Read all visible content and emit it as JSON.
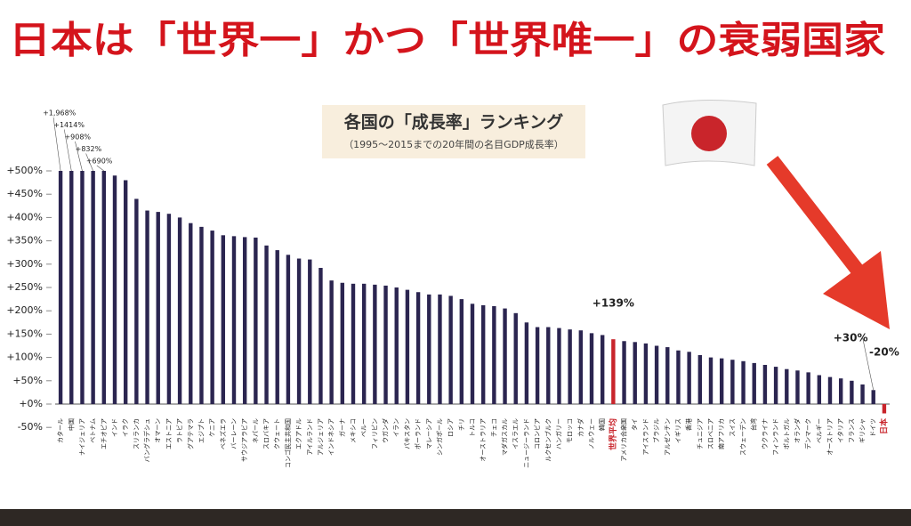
{
  "title": "日本は「世界一」かつ「世界唯一」の衰弱国家",
  "chart_data": {
    "type": "bar",
    "title": "各国の「成長率」ランキング",
    "subtitle": "（1995～2015までの20年間の名目GDP成長率）",
    "categories": [
      "カタール",
      "中国",
      "ナイジェリア",
      "ベトナム",
      "エチオピア",
      "インド",
      "イラク",
      "スリランカ",
      "バングラデシュ",
      "オマーン",
      "エストニア",
      "ラトビア",
      "グアテマラ",
      "エジプト",
      "ケニア",
      "ベネズエラ",
      "バーレーン",
      "サウジアラビア",
      "ネパール",
      "スロバキア",
      "クウェート",
      "コンゴ民主共和国",
      "エクアドル",
      "アイルランド",
      "アルジェリア",
      "インドネシア",
      "ガーナ",
      "メキシコ",
      "ペルー",
      "フィリピン",
      "ウガンダ",
      "イラン",
      "パキスタン",
      "ポーランド",
      "マレーシア",
      "シンガポール",
      "ロシア",
      "チリ",
      "トルコ",
      "オーストラリア",
      "チェコ",
      "マダガスカル",
      "イスラエル",
      "ニュージーランド",
      "コロンビア",
      "ルクセンブルク",
      "ハンガリー",
      "モロッコ",
      "カナダ",
      "ノルウェー",
      "韓国",
      "世界平均",
      "アメリカ合衆国",
      "タイ",
      "アイスランド",
      "ブラジル",
      "アルゼンチン",
      "イギリス",
      "香港",
      "チュニジア",
      "スロベニア",
      "南アフリカ",
      "スイス",
      "スウェーデン",
      "台湾",
      "ウクライナ",
      "フィンランド",
      "ポルトガル",
      "オランダ",
      "デンマーク",
      "ベルギー",
      "オーストリア",
      "イタリア",
      "フランス",
      "ギリシャ",
      "ドイツ",
      "日本"
    ],
    "values": [
      1968,
      1414,
      908,
      832,
      690,
      490,
      480,
      440,
      415,
      412,
      408,
      400,
      388,
      380,
      372,
      362,
      360,
      358,
      357,
      340,
      330,
      320,
      312,
      310,
      292,
      265,
      260,
      258,
      258,
      256,
      254,
      250,
      245,
      240,
      235,
      235,
      232,
      225,
      215,
      212,
      210,
      205,
      195,
      175,
      165,
      165,
      163,
      160,
      158,
      152,
      148,
      139,
      135,
      133,
      130,
      125,
      122,
      115,
      112,
      105,
      100,
      98,
      95,
      92,
      88,
      84,
      80,
      75,
      72,
      68,
      62,
      58,
      55,
      50,
      42,
      30,
      -20
    ],
    "value_labels": [
      "+1,968%",
      "+1414%",
      "+908%",
      "+832%",
      "+690%",
      null,
      null,
      null,
      null,
      null,
      null,
      null,
      null,
      null,
      null,
      null,
      null,
      null,
      null,
      null,
      null,
      null,
      null,
      null,
      null,
      null,
      null,
      null,
      null,
      null,
      null,
      null,
      null,
      null,
      null,
      null,
      null,
      null,
      null,
      null,
      null,
      null,
      null,
      null,
      null,
      null,
      null,
      null,
      null,
      null,
      null,
      "+139%",
      null,
      null,
      null,
      null,
      null,
      null,
      null,
      null,
      null,
      null,
      null,
      null,
      null,
      null,
      null,
      null,
      null,
      null,
      null,
      null,
      null,
      null,
      null,
      "+30%",
      "-20%"
    ],
    "colors": [
      "#2b2550",
      "#2b2550",
      "#2b2550",
      "#2b2550",
      "#2b2550",
      "#2b2550",
      "#2b2550",
      "#2b2550",
      "#2b2550",
      "#2b2550",
      "#2b2550",
      "#2b2550",
      "#2b2550",
      "#2b2550",
      "#2b2550",
      "#2b2550",
      "#2b2550",
      "#2b2550",
      "#2b2550",
      "#2b2550",
      "#2b2550",
      "#2b2550",
      "#2b2550",
      "#2b2550",
      "#2b2550",
      "#2b2550",
      "#2b2550",
      "#2b2550",
      "#2b2550",
      "#2b2550",
      "#2b2550",
      "#2b2550",
      "#2b2550",
      "#2b2550",
      "#2b2550",
      "#2b2550",
      "#2b2550",
      "#2b2550",
      "#2b2550",
      "#2b2550",
      "#2b2550",
      "#2b2550",
      "#2b2550",
      "#2b2550",
      "#2b2550",
      "#2b2550",
      "#2b2550",
      "#2b2550",
      "#2b2550",
      "#2b2550",
      "#2b2550",
      "#c8242b",
      "#2b2550",
      "#2b2550",
      "#2b2550",
      "#2b2550",
      "#2b2550",
      "#2b2550",
      "#2b2550",
      "#2b2550",
      "#2b2550",
      "#2b2550",
      "#2b2550",
      "#2b2550",
      "#2b2550",
      "#2b2550",
      "#2b2550",
      "#2b2550",
      "#2b2550",
      "#2b2550",
      "#2b2550",
      "#2b2550",
      "#2b2550",
      "#2b2550",
      "#2b2550",
      "#2b2550",
      "#c8242b"
    ],
    "ylim": [
      -50,
      500
    ],
    "yticks": [
      {
        "value": -50,
        "label": "-50%"
      },
      {
        "value": 0,
        "label": "+0%"
      },
      {
        "value": 50,
        "label": "+50%"
      },
      {
        "value": 100,
        "label": "+100%"
      },
      {
        "value": 150,
        "label": "+150%"
      },
      {
        "value": 200,
        "label": "+200%"
      },
      {
        "value": 250,
        "label": "+250%"
      },
      {
        "value": 300,
        "label": "+300%"
      },
      {
        "value": 350,
        "label": "+350%"
      },
      {
        "value": 400,
        "label": "+400%"
      },
      {
        "value": 450,
        "label": "+450%"
      },
      {
        "value": 500,
        "label": "+500%"
      }
    ]
  }
}
